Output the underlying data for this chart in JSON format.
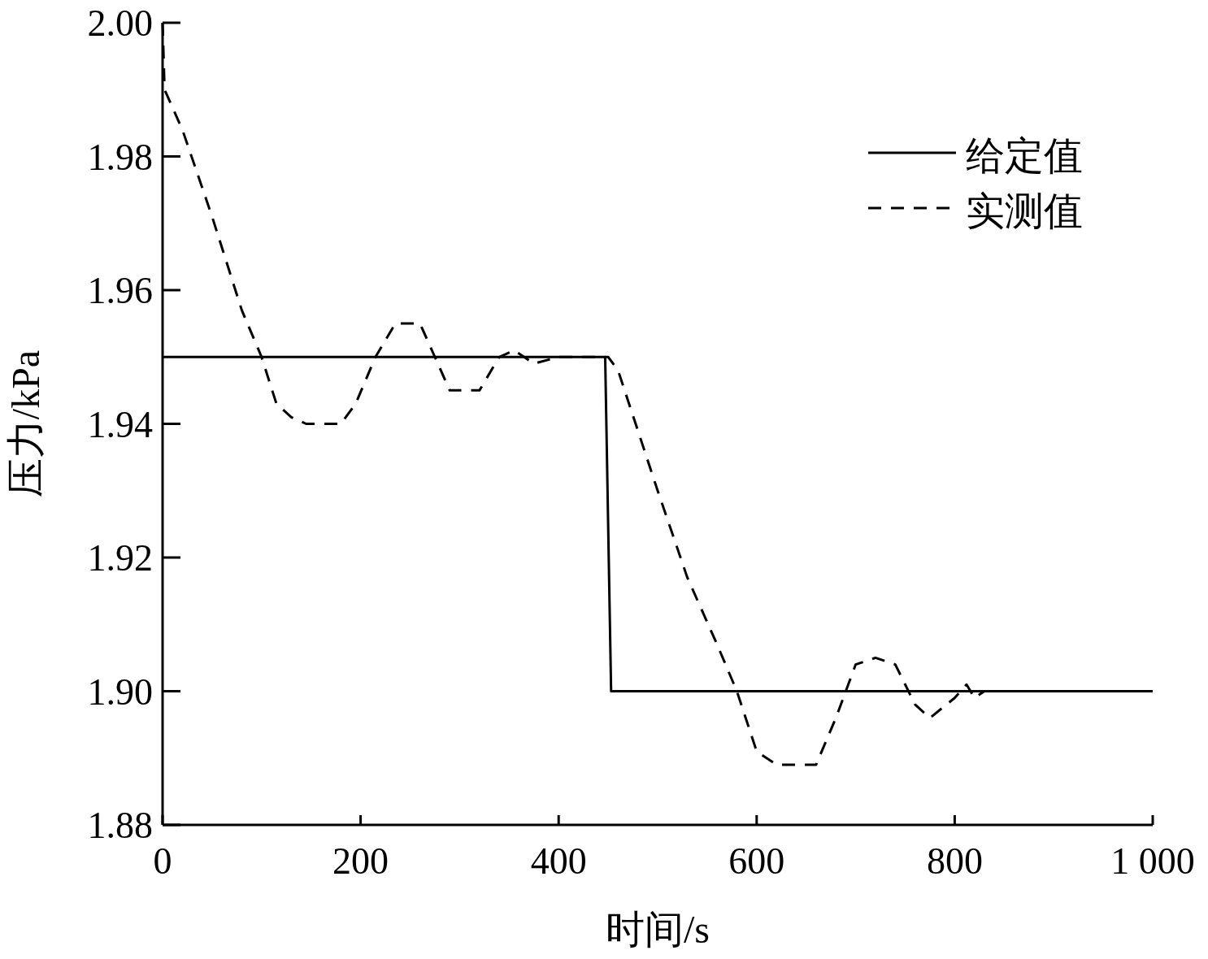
{
  "chart_data": {
    "type": "line",
    "xlabel": "时间/s",
    "ylabel": "压力/kPa",
    "xlim": [
      0,
      1000
    ],
    "ylim": [
      1.88,
      2.0
    ],
    "xticks": [
      0,
      200,
      400,
      600,
      800,
      {
        "value": 1000,
        "label": "1 000"
      }
    ],
    "yticks": [
      {
        "value": 1.88,
        "label": "1.88"
      },
      {
        "value": 1.9,
        "label": "1.90"
      },
      {
        "value": 1.92,
        "label": "1.92"
      },
      {
        "value": 1.94,
        "label": "1.94"
      },
      {
        "value": 1.96,
        "label": "1.96"
      },
      {
        "value": 1.98,
        "label": "1.98"
      },
      {
        "value": 2.0,
        "label": "2.00"
      }
    ],
    "legend": "top right",
    "grid": false,
    "marker": "none",
    "series": [
      {
        "name": "给定值",
        "color": "#000000",
        "line_style": "solid",
        "x": [
          0,
          447,
          453,
          1000
        ],
        "values": [
          1.95,
          1.95,
          1.9,
          1.9
        ]
      },
      {
        "name": "实测值",
        "color": "#000000",
        "line_style": "dashed",
        "x": [
          0,
          2,
          20,
          50,
          80,
          100,
          115,
          130,
          145,
          180,
          195,
          215,
          235,
          260,
          275,
          290,
          320,
          340,
          355,
          375,
          400,
          450,
          460,
          500,
          530,
          560,
          580,
          600,
          620,
          660,
          680,
          700,
          720,
          740,
          760,
          775,
          800,
          812,
          820,
          830,
          1000
        ],
        "values": [
          2.0,
          1.99,
          1.984,
          1.971,
          1.957,
          1.95,
          1.943,
          1.941,
          1.94,
          1.94,
          1.943,
          1.95,
          1.955,
          1.955,
          1.95,
          1.945,
          1.945,
          1.95,
          1.951,
          1.949,
          1.95,
          1.95,
          1.948,
          1.93,
          1.917,
          1.907,
          1.9,
          1.891,
          1.889,
          1.889,
          1.896,
          1.904,
          1.905,
          1.904,
          1.898,
          1.896,
          1.899,
          1.901,
          1.899,
          1.9,
          1.9
        ]
      }
    ]
  }
}
